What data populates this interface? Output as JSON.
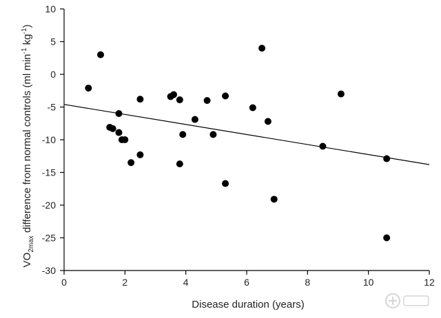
{
  "chart_data": {
    "type": "scatter",
    "title": "",
    "xlabel": "Disease duration (years)",
    "ylabel": {
      "prefix": "VO",
      "subscript": "2max",
      "middle": " difference from normal controls (ml min",
      "exp1": "-1",
      "middle2": " kg",
      "exp2": "-1",
      "suffix": ")"
    },
    "xlim": [
      0,
      12
    ],
    "ylim": [
      -30,
      10
    ],
    "xticks": [
      "0",
      "2",
      "4",
      "6",
      "8",
      "10",
      "12"
    ],
    "yticks": [
      "10",
      "5",
      "0",
      "-5",
      "-10",
      "-15",
      "-20",
      "-25",
      "-30"
    ],
    "grid": false,
    "legend": false,
    "points": [
      {
        "x": 0.8,
        "y": -2.1
      },
      {
        "x": 1.2,
        "y": 3.0
      },
      {
        "x": 1.5,
        "y": -8.1
      },
      {
        "x": 1.6,
        "y": -8.3
      },
      {
        "x": 1.8,
        "y": -6.0
      },
      {
        "x": 1.8,
        "y": -8.9
      },
      {
        "x": 1.9,
        "y": -10.0
      },
      {
        "x": 2.0,
        "y": -10.0
      },
      {
        "x": 2.2,
        "y": -13.5
      },
      {
        "x": 2.5,
        "y": -3.8
      },
      {
        "x": 2.5,
        "y": -12.3
      },
      {
        "x": 3.5,
        "y": -3.4
      },
      {
        "x": 3.6,
        "y": -3.1
      },
      {
        "x": 3.8,
        "y": -3.9
      },
      {
        "x": 3.8,
        "y": -13.7
      },
      {
        "x": 3.9,
        "y": -9.2
      },
      {
        "x": 4.3,
        "y": -6.9
      },
      {
        "x": 4.7,
        "y": -4.0
      },
      {
        "x": 4.9,
        "y": -9.2
      },
      {
        "x": 5.3,
        "y": -3.3
      },
      {
        "x": 5.3,
        "y": -16.7
      },
      {
        "x": 6.2,
        "y": -5.1
      },
      {
        "x": 6.5,
        "y": 4.0
      },
      {
        "x": 6.7,
        "y": -7.2
      },
      {
        "x": 6.9,
        "y": -19.1
      },
      {
        "x": 8.5,
        "y": -11.0
      },
      {
        "x": 9.1,
        "y": -3.0
      },
      {
        "x": 10.6,
        "y": -12.9
      },
      {
        "x": 10.6,
        "y": -25.0
      }
    ],
    "trendline": {
      "x": [
        0,
        12
      ],
      "y": [
        -4.6,
        -13.8
      ]
    },
    "colors": {
      "marker": "#000000",
      "line": "#000000",
      "axis": "#000000"
    }
  }
}
